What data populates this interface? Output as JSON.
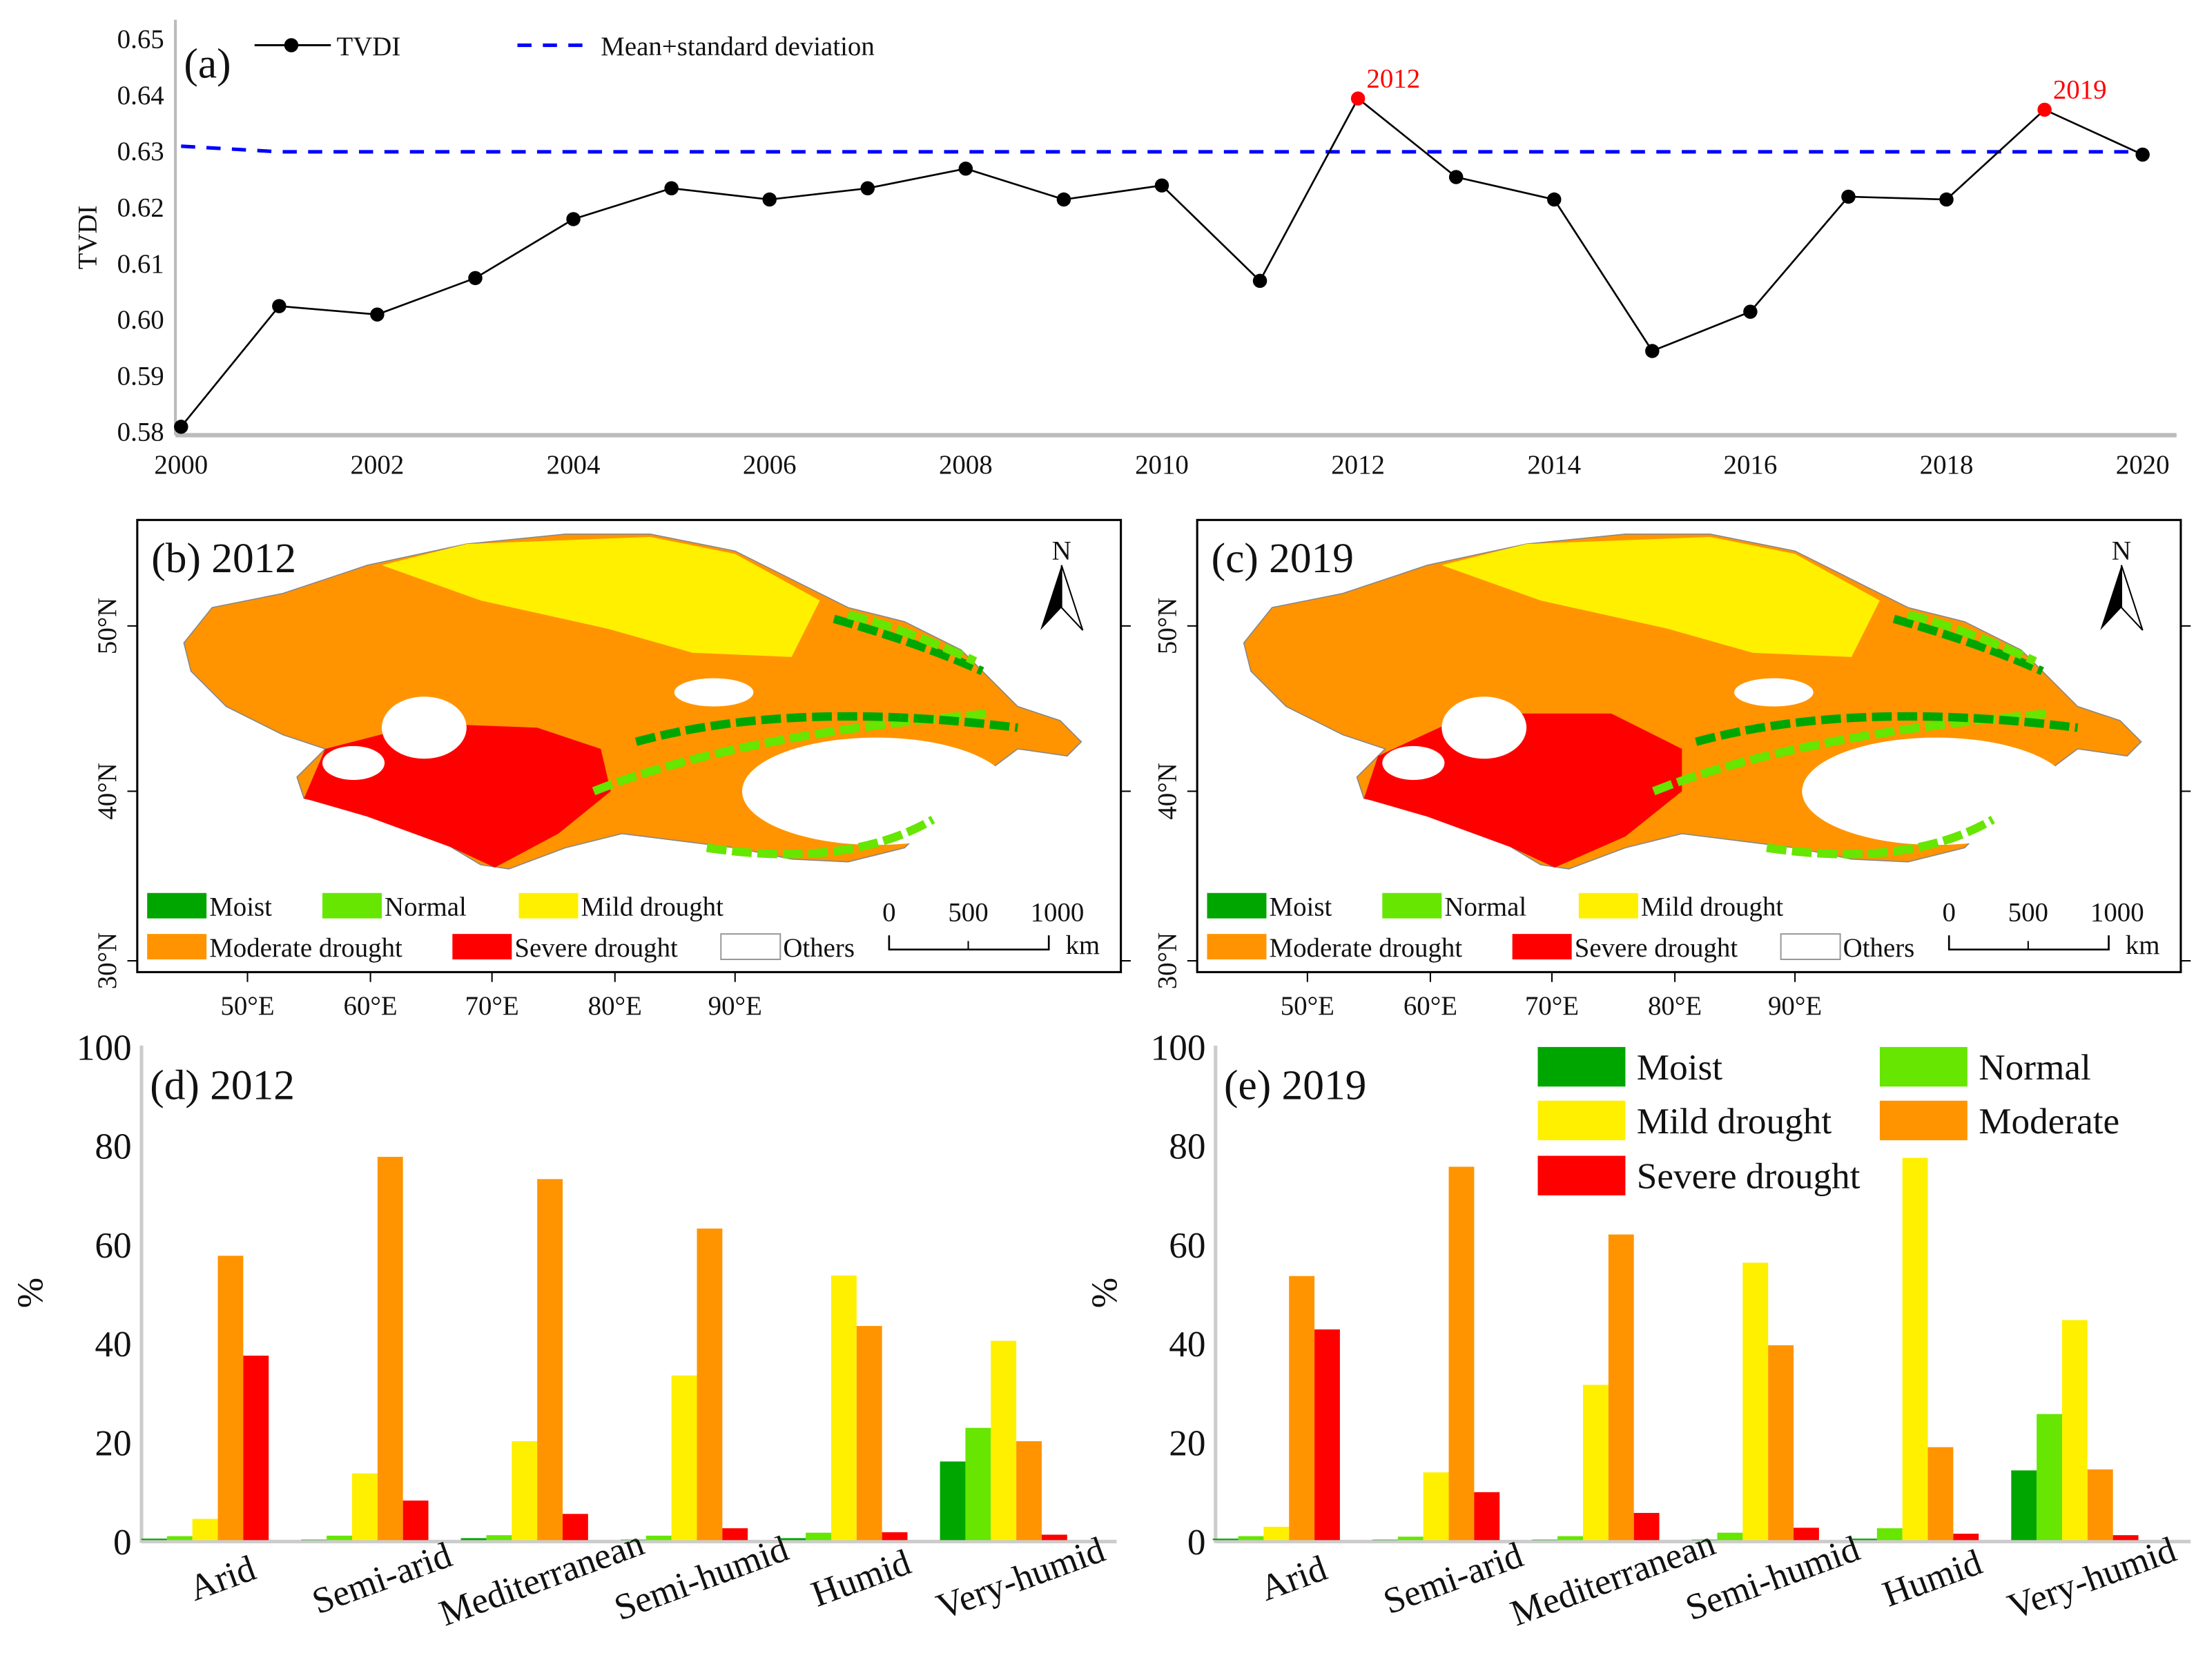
{
  "colors": {
    "moist": "#00a600",
    "normal": "#66e600",
    "mild": "#fff000",
    "moderate": "#ff9400",
    "severe": "#ff0000",
    "others": "#ffffff",
    "tvdi": "#000000",
    "threshold": "#0000ff",
    "highlight": "#ff0000"
  },
  "chart_data": [
    {
      "type": "line",
      "panel": "(a)",
      "ylabel": "TVDI",
      "xlabel": "",
      "ylim": [
        0.58,
        0.65
      ],
      "xlim": [
        2000,
        2020
      ],
      "yticks": [
        "0.58",
        "0.59",
        "0.60",
        "0.61",
        "0.62",
        "0.63",
        "0.64",
        "0.65"
      ],
      "xticks": [
        "2000",
        "2002",
        "2004",
        "2006",
        "2008",
        "2010",
        "2012",
        "2014",
        "2016",
        "2018",
        "2020"
      ],
      "legend": {
        "tvdi": "TVDI",
        "threshold": "Mean+standard deviation",
        "placement": "top-left"
      },
      "x": [
        2000,
        2001,
        2002,
        2003,
        2004,
        2005,
        2006,
        2007,
        2008,
        2009,
        2010,
        2011,
        2012,
        2013,
        2014,
        2015,
        2016,
        2017,
        2018,
        2019,
        2020
      ],
      "series": [
        {
          "name": "TVDI",
          "values": [
            0.581,
            0.6025,
            0.601,
            0.6075,
            0.618,
            0.6235,
            0.6215,
            0.6235,
            0.627,
            0.6215,
            0.624,
            0.607,
            0.6395,
            0.6255,
            0.6215,
            0.5945,
            0.6015,
            0.622,
            0.6215,
            0.6375,
            0.6295
          ]
        },
        {
          "name": "Mean+standard deviation",
          "values": [
            0.631,
            0.63,
            0.63,
            0.63,
            0.63,
            0.63,
            0.63,
            0.63,
            0.63,
            0.63,
            0.63,
            0.63,
            0.63,
            0.63,
            0.63,
            0.63,
            0.63,
            0.63,
            0.63,
            0.63,
            0.63
          ]
        }
      ],
      "annotations": [
        {
          "x": 2012,
          "label": "2012"
        },
        {
          "x": 2019,
          "label": "2019"
        }
      ]
    },
    {
      "type": "bar",
      "panel": "(d) 2012",
      "ylabel": "%",
      "ylim": [
        0,
        100
      ],
      "yticks": [
        "0",
        "20",
        "40",
        "60",
        "80",
        "100"
      ],
      "categories": [
        "Arid",
        "Semi-arid",
        "Mediterranean",
        "Semi-humid",
        "Humid",
        "Very-humid"
      ],
      "series": [
        {
          "name": "Moist",
          "values": [
            0.3,
            0.1,
            0.4,
            0.1,
            0.4,
            15.9
          ]
        },
        {
          "name": "Normal",
          "values": [
            0.8,
            0.9,
            1.0,
            0.9,
            1.5,
            22.7
          ]
        },
        {
          "name": "Mild drought",
          "values": [
            4.3,
            13.5,
            20.0,
            33.3,
            53.5,
            40.3
          ]
        },
        {
          "name": "Moderate",
          "values": [
            57.5,
            77.5,
            73.0,
            63.0,
            43.3,
            20.0
          ]
        },
        {
          "name": "Severe drought",
          "values": [
            37.3,
            8.0,
            5.3,
            2.4,
            1.6,
            1.1
          ]
        }
      ]
    },
    {
      "type": "bar",
      "panel": "(e) 2019",
      "ylabel": "%",
      "ylim": [
        0,
        100
      ],
      "yticks": [
        "0",
        "20",
        "40",
        "60",
        "80",
        "100"
      ],
      "categories": [
        "Arid",
        "Semi-arid",
        "Mediterranean",
        "Semi-humid",
        "Humid",
        "Very-humid"
      ],
      "legend": [
        "Moist",
        "Normal",
        "Mild drought",
        "Moderate",
        "Severe drought"
      ],
      "series": [
        {
          "name": "Moist",
          "values": [
            0.3,
            0.1,
            0.1,
            0.1,
            0.3,
            14.1
          ]
        },
        {
          "name": "Normal",
          "values": [
            0.8,
            0.7,
            0.8,
            1.5,
            2.4,
            25.5
          ]
        },
        {
          "name": "Mild drought",
          "values": [
            2.7,
            13.7,
            31.4,
            56.1,
            77.3,
            44.5
          ]
        },
        {
          "name": "Moderate",
          "values": [
            53.4,
            75.5,
            61.8,
            39.4,
            18.8,
            14.3
          ]
        },
        {
          "name": "Severe drought",
          "values": [
            42.6,
            9.7,
            5.5,
            2.5,
            1.3,
            1.0
          ]
        }
      ]
    }
  ],
  "maps": [
    {
      "title": "(b) 2012"
    },
    {
      "title": "(c) 2019"
    }
  ],
  "map_common": {
    "north": "N",
    "lat_labels": [
      "50°N",
      "40°N",
      "30°N"
    ],
    "lon_labels": [
      "50°E",
      "60°E",
      "70°E",
      "80°E",
      "90°E"
    ],
    "legend": [
      "Moist",
      "Normal",
      "Mild drought",
      "Moderate drought",
      "Severe drought",
      "Others"
    ],
    "scale": [
      "0",
      "500",
      "1000"
    ],
    "scale_unit": "km"
  },
  "panel_a": {
    "label": "(a)"
  }
}
